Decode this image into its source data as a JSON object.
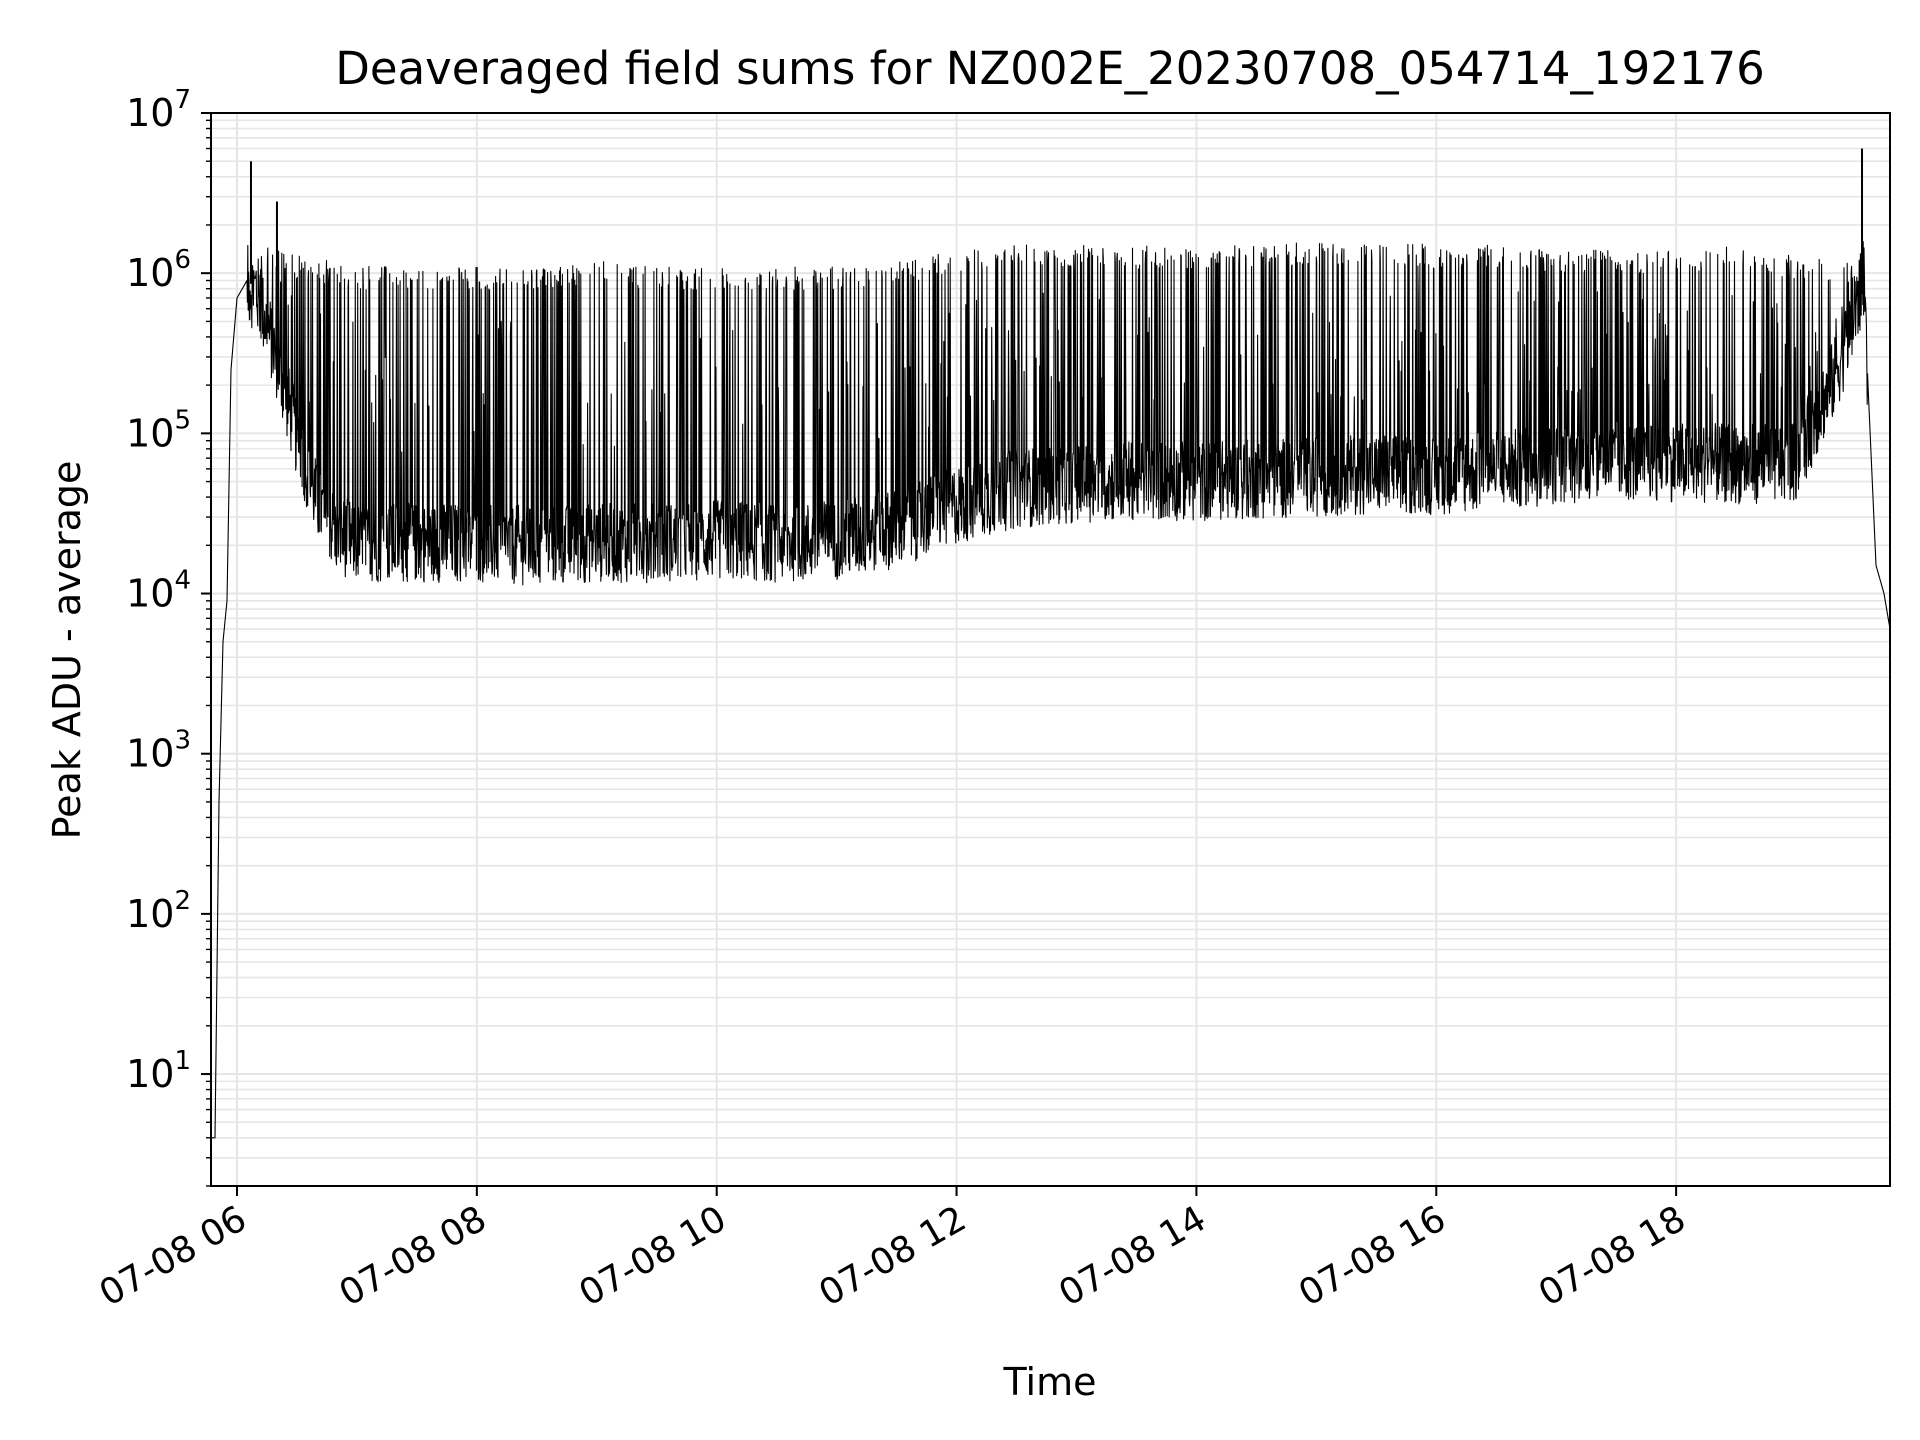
{
  "chart_data": {
    "type": "line",
    "title": "Deaveraged field sums for NZ002E_20230708_054714_192176",
    "xlabel": "Time",
    "ylabel": "Peak ADU - average",
    "yscale": "log",
    "ylim": [
      2,
      10000000
    ],
    "xlim": [
      "2023-07-08 05:47",
      "2023-07-08 19:47"
    ],
    "grid": true,
    "line_color": "#000000",
    "grid_color": "#e6e6e6",
    "x_ticks": [
      {
        "value": "2023-07-08 06:00",
        "label": "07-08 06"
      },
      {
        "value": "2023-07-08 08:00",
        "label": "07-08 08"
      },
      {
        "value": "2023-07-08 10:00",
        "label": "07-08 10"
      },
      {
        "value": "2023-07-08 12:00",
        "label": "07-08 12"
      },
      {
        "value": "2023-07-08 14:00",
        "label": "07-08 14"
      },
      {
        "value": "2023-07-08 16:00",
        "label": "07-08 16"
      },
      {
        "value": "2023-07-08 18:00",
        "label": "07-08 18"
      }
    ],
    "y_ticks": [
      {
        "value": 10,
        "base": "10",
        "exp": "1"
      },
      {
        "value": 100,
        "base": "10",
        "exp": "2"
      },
      {
        "value": 1000,
        "base": "10",
        "exp": "3"
      },
      {
        "value": 10000,
        "base": "10",
        "exp": "4"
      },
      {
        "value": 100000,
        "base": "10",
        "exp": "5"
      },
      {
        "value": 1000000,
        "base": "10",
        "exp": "6"
      },
      {
        "value": 10000000,
        "base": "10",
        "exp": "7"
      }
    ],
    "series": [
      {
        "x": [
          "2023-07-08 05:47",
          "2023-07-08 05:49",
          "2023-07-08 05:51",
          "2023-07-08 05:53",
          "2023-07-08 05:55",
          "2023-07-08 05:57",
          "2023-07-08 06:00",
          "2023-07-08 06:05",
          "2023-07-08 06:10",
          "2023-07-08 06:15",
          "2023-07-08 06:20",
          "2023-07-08 06:30",
          "2023-07-08 06:40",
          "2023-07-08 06:50",
          "2023-07-08 07:00",
          "2023-07-08 07:30",
          "2023-07-08 08:00",
          "2023-07-08 08:30",
          "2023-07-08 09:00",
          "2023-07-08 09:30",
          "2023-07-08 10:00",
          "2023-07-08 10:30",
          "2023-07-08 11:00",
          "2023-07-08 11:30",
          "2023-07-08 12:00",
          "2023-07-08 12:30",
          "2023-07-08 13:00",
          "2023-07-08 13:30",
          "2023-07-08 14:00",
          "2023-07-08 14:30",
          "2023-07-08 15:00",
          "2023-07-08 15:30",
          "2023-07-08 16:00",
          "2023-07-08 16:30",
          "2023-07-08 17:00",
          "2023-07-08 17:30",
          "2023-07-08 18:00",
          "2023-07-08 18:30",
          "2023-07-08 19:00",
          "2023-07-08 19:20",
          "2023-07-08 19:30",
          "2023-07-08 19:34",
          "2023-07-08 19:36",
          "2023-07-08 19:40",
          "2023-07-08 19:44",
          "2023-07-08 19:47"
        ],
        "base": [
          4,
          4,
          500,
          5000,
          9000,
          250000,
          700000,
          900000,
          800000,
          500000,
          300000,
          100000,
          40000,
          25000,
          22000,
          22000,
          22000,
          21000,
          22000,
          22000,
          23000,
          22000,
          23000,
          27000,
          38000,
          48000,
          52000,
          54000,
          53000,
          55000,
          57000,
          59000,
          58000,
          62000,
          68000,
          72000,
          70000,
          68000,
          70000,
          250000,
          600000,
          1000000,
          200000,
          15000,
          10000,
          6000
        ],
        "peak": [
          4,
          4,
          500,
          5000,
          9000,
          250000,
          700000,
          1000000,
          1200000,
          1500000,
          1500000,
          1300000,
          1200000,
          1200000,
          1100000,
          1100000,
          1100000,
          1100000,
          1200000,
          1100000,
          1100000,
          1100000,
          1100000,
          1200000,
          1400000,
          1500000,
          1500000,
          1500000,
          1500000,
          1500000,
          1600000,
          1600000,
          1500000,
          1500000,
          1400000,
          1400000,
          1400000,
          1500000,
          1300000,
          1200000,
          1200000,
          1800000,
          200000,
          15000,
          10000,
          6000
        ]
      }
    ],
    "spikes": [
      {
        "x": "2023-07-08 06:07",
        "y": 5000000
      },
      {
        "x": "2023-07-08 06:20",
        "y": 2800000
      },
      {
        "x": "2023-07-08 19:33",
        "y": 6000000
      }
    ]
  }
}
